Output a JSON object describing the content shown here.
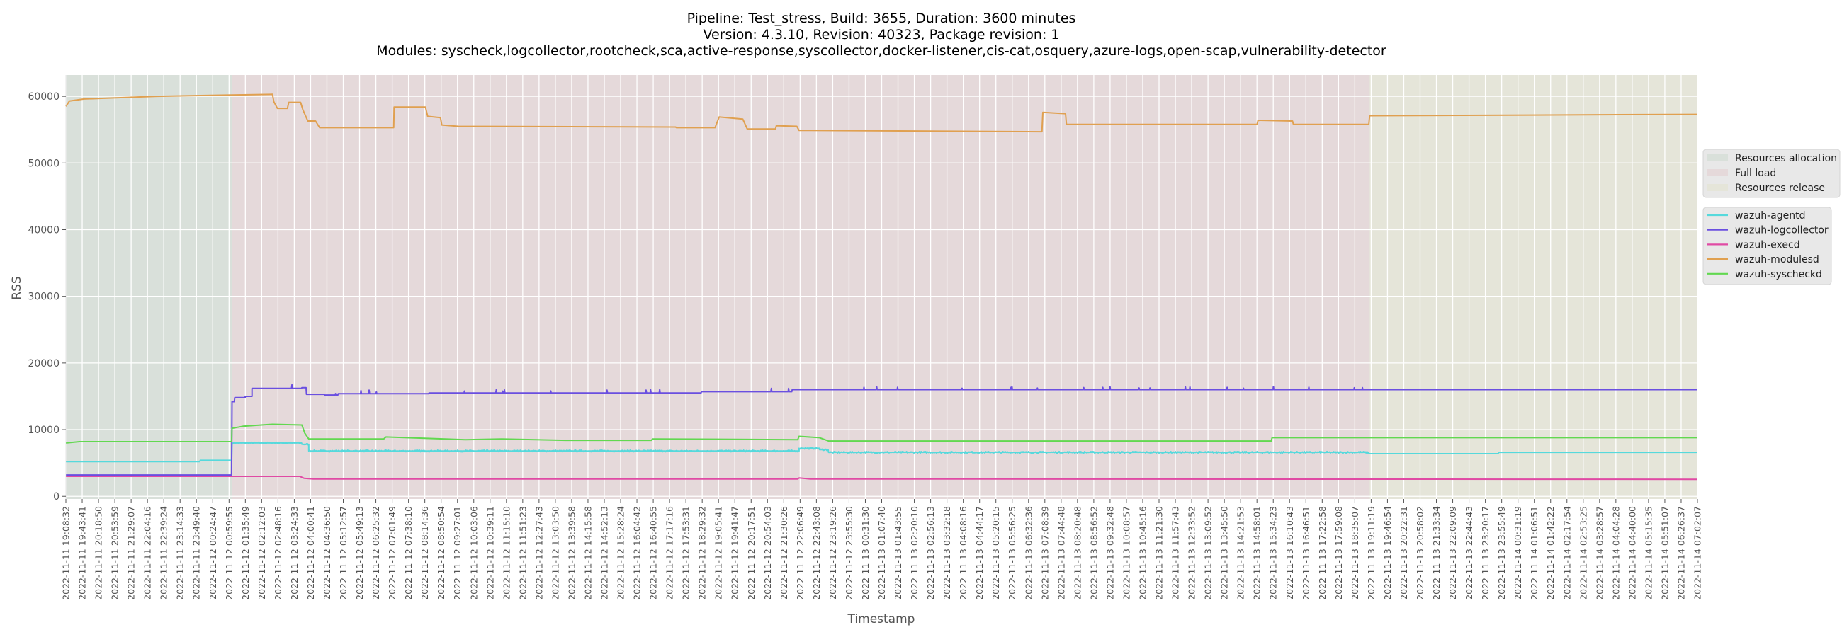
{
  "chart_data": {
    "type": "line",
    "title": [
      "Pipeline: Test_stress, Build: 3655, Duration: 3600 minutes",
      "Version: 4.3.10, Revision: 40323, Package revision: 1",
      "Modules: syscheck,logcollector,rootcheck,sca,active-response,syscollector,docker-listener,cis-cat,osquery,azure-logs,open-scap,vulnerability-detector"
    ],
    "xlabel": "Timestamp",
    "ylabel": "RSS",
    "x_unit": "minutes since 2022-11-11 19:08:32",
    "xlim": [
      0,
      3594
    ],
    "ylim": [
      -400,
      63200
    ],
    "yticks": [
      0,
      10000,
      20000,
      30000,
      40000,
      50000,
      60000
    ],
    "grid": true,
    "xtick_labels": [
      "2022-11-11 19:08:32",
      "2022-11-11 19:43:41",
      "2022-11-11 20:18:50",
      "2022-11-11 20:53:59",
      "2022-11-11 21:29:07",
      "2022-11-11 22:04:16",
      "2022-11-11 22:39:24",
      "2022-11-11 23:14:33",
      "2022-11-11 23:49:40",
      "2022-11-12 00:24:47",
      "2022-11-12 00:59:55",
      "2022-11-12 01:35:49",
      "2022-11-12 02:12:03",
      "2022-11-12 02:48:16",
      "2022-11-12 03:24:33",
      "2022-11-12 04:00:41",
      "2022-11-12 04:36:50",
      "2022-11-12 05:12:57",
      "2022-11-12 05:49:13",
      "2022-11-12 06:25:32",
      "2022-11-12 07:01:49",
      "2022-11-12 07:38:10",
      "2022-11-12 08:14:36",
      "2022-11-12 08:50:54",
      "2022-11-12 09:27:01",
      "2022-11-12 10:03:06",
      "2022-11-12 10:39:11",
      "2022-11-12 11:15:10",
      "2022-11-12 11:51:23",
      "2022-11-12 12:27:43",
      "2022-11-12 13:03:50",
      "2022-11-12 13:39:58",
      "2022-11-12 14:15:58",
      "2022-11-12 14:52:13",
      "2022-11-12 15:28:24",
      "2022-11-12 16:04:42",
      "2022-11-12 16:40:55",
      "2022-11-12 17:17:16",
      "2022-11-12 17:53:31",
      "2022-11-12 18:29:32",
      "2022-11-12 19:05:41",
      "2022-11-12 19:41:47",
      "2022-11-12 20:17:51",
      "2022-11-12 20:54:03",
      "2022-11-12 21:30:26",
      "2022-11-12 22:06:49",
      "2022-11-12 22:43:08",
      "2022-11-12 23:19:26",
      "2022-11-12 23:55:30",
      "2022-11-13 00:31:30",
      "2022-11-13 01:07:40",
      "2022-11-13 01:43:55",
      "2022-11-13 02:20:10",
      "2022-11-13 02:56:13",
      "2022-11-13 03:32:18",
      "2022-11-13 04:08:16",
      "2022-11-13 04:44:17",
      "2022-11-13 05:20:15",
      "2022-11-13 05:56:25",
      "2022-11-13 06:32:36",
      "2022-11-13 07:08:39",
      "2022-11-13 07:44:48",
      "2022-11-13 08:20:48",
      "2022-11-13 08:56:52",
      "2022-11-13 09:32:48",
      "2022-11-13 10:08:57",
      "2022-11-13 10:45:16",
      "2022-11-13 11:21:30",
      "2022-11-13 11:57:43",
      "2022-11-13 12:33:52",
      "2022-11-13 13:09:52",
      "2022-11-13 13:45:50",
      "2022-11-13 14:21:53",
      "2022-11-13 14:58:01",
      "2022-11-13 15:34:23",
      "2022-11-13 16:10:43",
      "2022-11-13 16:46:51",
      "2022-11-13 17:22:58",
      "2022-11-13 17:59:08",
      "2022-11-13 18:35:07",
      "2022-11-13 19:11:19",
      "2022-11-13 19:46:54",
      "2022-11-13 20:22:31",
      "2022-11-13 20:58:02",
      "2022-11-13 21:33:34",
      "2022-11-13 22:09:09",
      "2022-11-13 22:44:43",
      "2022-11-13 23:20:17",
      "2022-11-13 23:55:49",
      "2022-11-14 00:31:19",
      "2022-11-14 01:06:51",
      "2022-11-14 01:42:22",
      "2022-11-14 02:17:54",
      "2022-11-14 02:53:25",
      "2022-11-14 03:28:57",
      "2022-11-14 04:04:28",
      "2022-11-14 04:40:00",
      "2022-11-14 05:15:35",
      "2022-11-14 05:51:07",
      "2022-11-14 06:26:37",
      "2022-11-14 07:02:07"
    ],
    "regions": [
      {
        "name": "Resources allocation",
        "from": 0,
        "to": 366,
        "color": "#d9e0da"
      },
      {
        "name": "Full load",
        "from": 366,
        "to": 2872,
        "color": "#e5d9da"
      },
      {
        "name": "Resources release",
        "from": 2872,
        "to": 3594,
        "color": "#e5e5d9"
      }
    ],
    "legend_placement": "right",
    "series": [
      {
        "name": "wazuh-agentd",
        "color": "#56d9dc",
        "noise": {
          "amp": 250,
          "from": 366,
          "to": 2870
        },
        "points": [
          [
            0,
            5200
          ],
          [
            295,
            5200
          ],
          [
            296,
            5400
          ],
          [
            365,
            5400
          ],
          [
            366,
            8000
          ],
          [
            520,
            7800
          ],
          [
            535,
            6800
          ],
          [
            1612,
            6800
          ],
          [
            1615,
            7200
          ],
          [
            1660,
            7000
          ],
          [
            1680,
            6600
          ],
          [
            2870,
            6500
          ],
          [
            2871,
            6400
          ],
          [
            3155,
            6400
          ],
          [
            3156,
            6600
          ],
          [
            3594,
            6600
          ]
        ]
      },
      {
        "name": "wazuh-logcollector",
        "color": "#6a4fe0",
        "noise": {
          "amp": 350,
          "from": 366,
          "to": 2870,
          "spiky": true
        },
        "points": [
          [
            0,
            3200
          ],
          [
            365,
            3200
          ],
          [
            366,
            14200
          ],
          [
            372,
            14800
          ],
          [
            395,
            15000
          ],
          [
            410,
            16200
          ],
          [
            520,
            16300
          ],
          [
            530,
            15300
          ],
          [
            570,
            15200
          ],
          [
            600,
            15400
          ],
          [
            800,
            15500
          ],
          [
            1400,
            15700
          ],
          [
            1600,
            16000
          ],
          [
            3594,
            16000
          ]
        ]
      },
      {
        "name": "wazuh-execd",
        "color": "#e04aa4",
        "points": [
          [
            0,
            3000
          ],
          [
            515,
            3000
          ],
          [
            525,
            2700
          ],
          [
            545,
            2600
          ],
          [
            1612,
            2600
          ],
          [
            1615,
            2750
          ],
          [
            1640,
            2600
          ],
          [
            3594,
            2550
          ]
        ]
      },
      {
        "name": "wazuh-modulesd",
        "color": "#e0a050",
        "points": [
          [
            0,
            58500
          ],
          [
            8,
            59300
          ],
          [
            40,
            59600
          ],
          [
            200,
            60000
          ],
          [
            365,
            60200
          ],
          [
            455,
            60300
          ],
          [
            458,
            59200
          ],
          [
            466,
            58200
          ],
          [
            488,
            58200
          ],
          [
            491,
            59100
          ],
          [
            517,
            59100
          ],
          [
            522,
            58000
          ],
          [
            533,
            56300
          ],
          [
            550,
            56300
          ],
          [
            559,
            55300
          ],
          [
            722,
            55300
          ],
          [
            723,
            58400
          ],
          [
            792,
            58400
          ],
          [
            797,
            57000
          ],
          [
            825,
            56800
          ],
          [
            828,
            55700
          ],
          [
            864,
            55500
          ],
          [
            1343,
            55400
          ],
          [
            1345,
            55300
          ],
          [
            1430,
            55300
          ],
          [
            1439,
            56900
          ],
          [
            1491,
            56600
          ],
          [
            1501,
            55100
          ],
          [
            1563,
            55100
          ],
          [
            1565,
            55600
          ],
          [
            1610,
            55500
          ],
          [
            1615,
            54900
          ],
          [
            2150,
            54700
          ],
          [
            2152,
            57600
          ],
          [
            2202,
            57400
          ],
          [
            2204,
            55800
          ],
          [
            2624,
            55800
          ],
          [
            2626,
            56400
          ],
          [
            2702,
            56300
          ],
          [
            2704,
            55800
          ],
          [
            2870,
            55800
          ],
          [
            2872,
            57100
          ],
          [
            3594,
            57300
          ]
        ]
      },
      {
        "name": "wazuh-syscheckd",
        "color": "#62d850",
        "points": [
          [
            0,
            8000
          ],
          [
            30,
            8200
          ],
          [
            365,
            8200
          ],
          [
            366,
            10200
          ],
          [
            390,
            10500
          ],
          [
            455,
            10800
          ],
          [
            520,
            10700
          ],
          [
            526,
            9500
          ],
          [
            535,
            8600
          ],
          [
            700,
            8600
          ],
          [
            705,
            8900
          ],
          [
            880,
            8500
          ],
          [
            960,
            8600
          ],
          [
            1100,
            8400
          ],
          [
            1290,
            8400
          ],
          [
            1292,
            8600
          ],
          [
            1612,
            8500
          ],
          [
            1615,
            9000
          ],
          [
            1660,
            8800
          ],
          [
            1680,
            8300
          ],
          [
            2655,
            8300
          ],
          [
            2657,
            8800
          ],
          [
            3594,
            8800
          ]
        ]
      }
    ]
  }
}
